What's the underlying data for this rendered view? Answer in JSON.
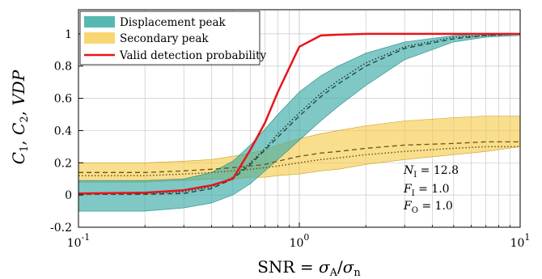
{
  "chart_data": {
    "type": "line",
    "xlabel": "SNR = σA/σn",
    "ylabel": "C1, C2, VDP",
    "x_scale": "log",
    "xlim": [
      0.1,
      10
    ],
    "ylim": [
      -0.2,
      1.15
    ],
    "grid": true,
    "legend_position": "top-left",
    "x_ticks": [
      {
        "value": 0.1,
        "base": "10",
        "exp": "-1"
      },
      {
        "value": 1,
        "base": "10",
        "exp": "0"
      },
      {
        "value": 10,
        "base": "10",
        "exp": "1"
      }
    ],
    "y_ticks": [
      -0.2,
      0,
      0.2,
      0.4,
      0.6,
      0.8,
      1
    ],
    "y_tick_labels": [
      "-0.2",
      "0",
      "0.2",
      "0.4",
      "0.6",
      "0.8",
      "1"
    ],
    "x": [
      0.1,
      0.2,
      0.3,
      0.4,
      0.5,
      0.6,
      0.7,
      0.8,
      1.0,
      1.25,
      1.5,
      2.0,
      3.0,
      5.0,
      7.0,
      10.0
    ],
    "series": [
      {
        "name": "Displacement peak",
        "kind": "band",
        "color": "#3aaba6",
        "upper": [
          0.09,
          0.09,
          0.1,
          0.14,
          0.21,
          0.31,
          0.41,
          0.5,
          0.64,
          0.74,
          0.8,
          0.88,
          0.95,
          0.99,
          1.0,
          1.0
        ],
        "lower": [
          -0.1,
          -0.1,
          -0.08,
          -0.05,
          0.0,
          0.07,
          0.15,
          0.22,
          0.34,
          0.46,
          0.55,
          0.68,
          0.84,
          0.95,
          0.98,
          0.99
        ],
        "mean_dashed": [
          0.005,
          0.005,
          0.01,
          0.04,
          0.1,
          0.19,
          0.28,
          0.36,
          0.49,
          0.61,
          0.69,
          0.8,
          0.91,
          0.97,
          0.99,
          1.0
        ],
        "median_dotted": [
          0.01,
          0.01,
          0.02,
          0.05,
          0.11,
          0.2,
          0.29,
          0.38,
          0.51,
          0.63,
          0.71,
          0.82,
          0.92,
          0.98,
          0.99,
          1.0
        ]
      },
      {
        "name": "Secondary peak",
        "kind": "band",
        "color": "#f5c842",
        "upper": [
          0.2,
          0.2,
          0.21,
          0.22,
          0.24,
          0.26,
          0.28,
          0.31,
          0.35,
          0.38,
          0.4,
          0.43,
          0.46,
          0.48,
          0.49,
          0.49
        ],
        "lower": [
          0.08,
          0.08,
          0.09,
          0.1,
          0.1,
          0.11,
          0.11,
          0.12,
          0.13,
          0.15,
          0.16,
          0.19,
          0.22,
          0.25,
          0.27,
          0.3
        ],
        "mean_dashed": [
          0.14,
          0.14,
          0.15,
          0.16,
          0.17,
          0.18,
          0.19,
          0.21,
          0.24,
          0.26,
          0.27,
          0.29,
          0.31,
          0.32,
          0.33,
          0.33
        ],
        "median_dotted": [
          0.12,
          0.12,
          0.13,
          0.14,
          0.15,
          0.16,
          0.17,
          0.18,
          0.2,
          0.22,
          0.23,
          0.25,
          0.27,
          0.29,
          0.3,
          0.3
        ]
      },
      {
        "name": "Valid detection probability",
        "kind": "line",
        "color": "#e8141a",
        "x": [
          0.1,
          0.2,
          0.3,
          0.4,
          0.5,
          0.6,
          0.7,
          0.8,
          1.0,
          1.25,
          1.5,
          2.0,
          3.0,
          5.0,
          10.0
        ],
        "values": [
          0.01,
          0.015,
          0.03,
          0.06,
          0.1,
          0.28,
          0.45,
          0.64,
          0.92,
          0.99,
          0.995,
          1.0,
          1.0,
          1.0,
          1.0
        ]
      }
    ],
    "annotations": [
      {
        "main": "N",
        "sub": "I",
        "rest": " = 12.8"
      },
      {
        "main": "F",
        "sub": "I",
        "rest": " = 1.0"
      },
      {
        "main": "F",
        "sub": "O",
        "rest": " = 1.0"
      }
    ]
  }
}
